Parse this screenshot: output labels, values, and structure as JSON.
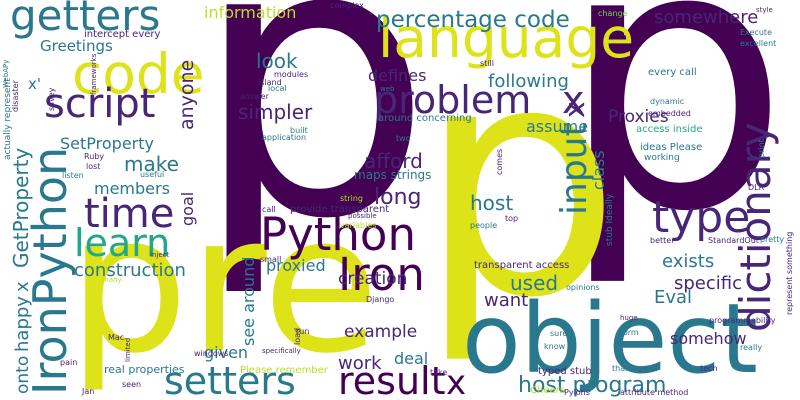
{
  "words": [
    {
      "text": "p",
      "color": "#440154"
    },
    {
      "text": "p",
      "color": "#440154"
    },
    {
      "text": "p",
      "color": "#dde318"
    },
    {
      "text": "pre",
      "color": "#dde318"
    },
    {
      "text": "object",
      "color": "#2a788e"
    },
    {
      "text": "language",
      "color": "#dde318"
    },
    {
      "text": "code",
      "color": "#dde318"
    },
    {
      "text": "getters",
      "color": "#2a788e"
    },
    {
      "text": "script",
      "color": "#482677"
    },
    {
      "text": "problem",
      "color": "#482677"
    },
    {
      "text": "x",
      "color": "#482677"
    },
    {
      "text": "percentage code",
      "color": "#2a788e"
    },
    {
      "text": "information",
      "color": "#b8de29"
    },
    {
      "text": "somewhere",
      "color": "#482677"
    },
    {
      "text": "Greetings",
      "color": "#2a788e"
    },
    {
      "text": "time",
      "color": "#482677"
    },
    {
      "text": "learn",
      "color": "#22a884"
    },
    {
      "text": "type",
      "color": "#482677"
    },
    {
      "text": "dictionary",
      "color": "#482677"
    },
    {
      "text": "Python",
      "color": "#440154"
    },
    {
      "text": "Iron",
      "color": "#440154"
    },
    {
      "text": "IronPython",
      "color": "#2a788e"
    },
    {
      "text": "setters",
      "color": "#2a788e"
    },
    {
      "text": "result",
      "color": "#440154"
    },
    {
      "text": "x",
      "color": "#440154"
    },
    {
      "text": "input",
      "color": "#2a788e"
    },
    {
      "text": "x",
      "color": "#482677"
    },
    {
      "text": "afford",
      "color": "#482677"
    },
    {
      "text": "long",
      "color": "#482677"
    },
    {
      "text": "host",
      "color": "#2a788e"
    },
    {
      "text": "construction",
      "color": "#2a788e"
    },
    {
      "text": "make",
      "color": "#2a788e"
    },
    {
      "text": "members",
      "color": "#2a788e"
    },
    {
      "text": "SetProperty",
      "color": "#2a788e"
    },
    {
      "text": "anyone",
      "color": "#482677"
    },
    {
      "text": "goal",
      "color": "#482677"
    },
    {
      "text": "look",
      "color": "#2a788e"
    },
    {
      "text": "simpler",
      "color": "#482677"
    },
    {
      "text": "defines",
      "color": "#482677"
    },
    {
      "text": "following",
      "color": "#2a788e"
    },
    {
      "text": "assume",
      "color": "#2a788e"
    },
    {
      "text": "Proxies",
      "color": "#482677"
    },
    {
      "text": "class",
      "color": "#2a788e"
    },
    {
      "text": "exists",
      "color": "#2a788e"
    },
    {
      "text": "specific",
      "color": "#482677"
    },
    {
      "text": "somehow",
      "color": "#482677"
    },
    {
      "text": "Eval",
      "color": "#2a788e"
    },
    {
      "text": "used",
      "color": "#2a788e"
    },
    {
      "text": "want",
      "color": "#482677"
    },
    {
      "text": "creation",
      "color": "#482677"
    },
    {
      "text": "proxied",
      "color": "#2a788e"
    },
    {
      "text": "example",
      "color": "#482677"
    },
    {
      "text": "work",
      "color": "#482677"
    },
    {
      "text": "deal",
      "color": "#2a788e"
    },
    {
      "text": "given",
      "color": "#2a788e"
    },
    {
      "text": "see around",
      "color": "#2a788e"
    },
    {
      "text": "host program",
      "color": "#2a788e"
    },
    {
      "text": "GetProperty",
      "color": "#2a788e"
    },
    {
      "text": "x",
      "color": "#2a788e"
    },
    {
      "text": "happy",
      "color": "#2a788e"
    },
    {
      "text": "onto",
      "color": "#2a788e"
    },
    {
      "text": "x'",
      "color": "#2a788e"
    },
    {
      "text": "maps strings",
      "color": "#2a788e"
    },
    {
      "text": "transparent access",
      "color": "#482677"
    },
    {
      "text": "around concerning",
      "color": "#2a788e"
    },
    {
      "text": "intercept every",
      "color": "#482677"
    },
    {
      "text": "ideas Please",
      "color": "#2a788e"
    },
    {
      "text": "working",
      "color": "#2a788e"
    },
    {
      "text": "access inside",
      "color": "#22a884"
    },
    {
      "text": "every call",
      "color": "#2a788e"
    },
    {
      "text": "typed stub",
      "color": "#482677"
    },
    {
      "text": "Cheers",
      "color": "#b8de29"
    },
    {
      "text": "real properties",
      "color": "#2a788e"
    },
    {
      "text": "Please remember",
      "color": "#b8de29"
    },
    {
      "text": "provide transparent",
      "color": "#482677"
    },
    {
      "text": "complex",
      "color": "#482677"
    },
    {
      "text": "change",
      "color": "#7ad151"
    },
    {
      "text": "style",
      "color": "#482677"
    },
    {
      "text": "Execute",
      "color": "#2a788e"
    },
    {
      "text": "excellent",
      "color": "#2a788e"
    },
    {
      "text": "dynamic",
      "color": "#2a788e"
    },
    {
      "text": "embedded",
      "color": "#482677"
    },
    {
      "text": "modules",
      "color": "#482677"
    },
    {
      "text": "island",
      "color": "#482677"
    },
    {
      "text": "local",
      "color": "#2a788e"
    },
    {
      "text": "answer",
      "color": "#482677"
    },
    {
      "text": "built",
      "color": "#2a788e"
    },
    {
      "text": "application",
      "color": "#2a788e"
    },
    {
      "text": "frameworks",
      "color": "#482677"
    },
    {
      "text": "Ruby",
      "color": "#482677"
    },
    {
      "text": "lost",
      "color": "#482677"
    },
    {
      "text": "listen",
      "color": "#2a788e"
    },
    {
      "text": "useful",
      "color": "#2a788e"
    },
    {
      "text": "call",
      "color": "#482677"
    },
    {
      "text": "still",
      "color": "#482677"
    },
    {
      "text": "web",
      "color": "#2a788e"
    },
    {
      "text": "two",
      "color": "#2a788e"
    },
    {
      "text": "people",
      "color": "#2a788e"
    },
    {
      "text": "top",
      "color": "#482677"
    },
    {
      "text": "variables",
      "color": "#b8de29"
    },
    {
      "text": "better",
      "color": "#482677"
    },
    {
      "text": "opinions",
      "color": "#2a788e"
    },
    {
      "text": "StandardOut",
      "color": "#482677"
    },
    {
      "text": "programmability",
      "color": "#482677"
    },
    {
      "text": "Django",
      "color": "#482677"
    },
    {
      "text": "sure",
      "color": "#2a788e"
    },
    {
      "text": "know",
      "color": "#2a788e"
    },
    {
      "text": "thank",
      "color": "#2a788e"
    },
    {
      "text": "tech",
      "color": "#482677"
    },
    {
      "text": "really",
      "color": "#2a788e"
    },
    {
      "text": "Pylons",
      "color": "#482677"
    },
    {
      "text": "attribute method",
      "color": "#482677"
    },
    {
      "text": "windows",
      "color": "#482677"
    },
    {
      "text": "Mac",
      "color": "#482677"
    },
    {
      "text": "Jan",
      "color": "#482677"
    },
    {
      "text": "pain",
      "color": "#482677"
    },
    {
      "text": "seen",
      "color": "#482677"
    },
    {
      "text": "take",
      "color": "#482677"
    },
    {
      "text": "pretty",
      "color": "#2a788e"
    },
    {
      "text": "print",
      "color": "#2a788e"
    },
    {
      "text": "DLR",
      "color": "#482677"
    },
    {
      "text": "represent something",
      "color": "#482677"
    },
    {
      "text": "actually represent",
      "color": "#2a788e"
    },
    {
      "text": "disaster",
      "color": "#482677"
    },
    {
      "text": "savey",
      "color": "#482677"
    },
    {
      "text": "WebAPy",
      "color": "#2a788e"
    },
    {
      "text": "stub Ideally",
      "color": "#2a788e"
    },
    {
      "text": "string",
      "color": "#b8de29"
    },
    {
      "text": "possible",
      "color": "#482677"
    },
    {
      "text": "small",
      "color": "#482677"
    },
    {
      "text": "inject",
      "color": "#482677"
    },
    {
      "text": "many",
      "color": "#b8de29"
    },
    {
      "text": "limited",
      "color": "#482677"
    },
    {
      "text": "specifically",
      "color": "#482677"
    },
    {
      "text": "load",
      "color": "#482677"
    },
    {
      "text": "run",
      "color": "#482677"
    },
    {
      "text": "huge",
      "color": "#482677"
    },
    {
      "text": "form",
      "color": "#2a788e"
    },
    {
      "text": "comes",
      "color": "#482677"
    }
  ]
}
